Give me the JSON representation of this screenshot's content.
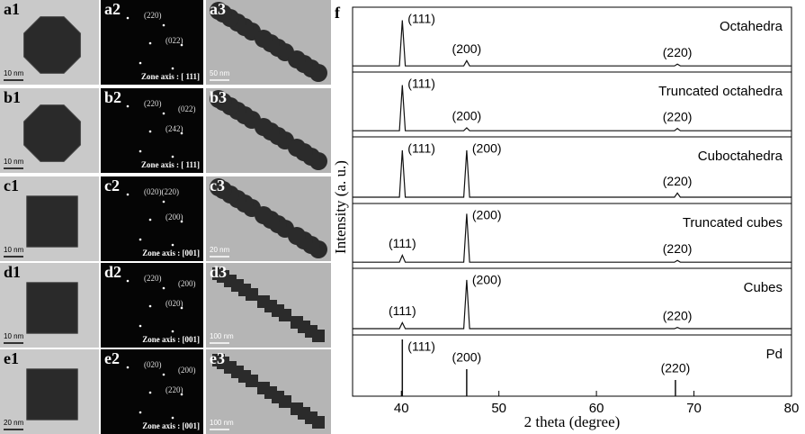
{
  "panels": [
    {
      "label": "a1",
      "scale_bar": "10 nm"
    },
    {
      "label": "a2",
      "spots": [
        "(220)",
        "(022)"
      ],
      "zone": "Zone axis : [ 111]"
    },
    {
      "label": "a3",
      "scale_bar": "50 nm"
    },
    {
      "label": "b1",
      "scale_bar": "10 nm"
    },
    {
      "label": "b2",
      "spots": [
        "(220)",
        "(242)",
        "(022)"
      ],
      "zone": "Zone axis : [ 111]"
    },
    {
      "label": "b3"
    },
    {
      "label": "c1",
      "scale_bar": "10 nm"
    },
    {
      "label": "c2",
      "spots": [
        "(020)(220)",
        "(200)"
      ],
      "zone": "Zone axis : [001]"
    },
    {
      "label": "c3",
      "scale_bar": "20 nm"
    },
    {
      "label": "d1",
      "scale_bar": "10 nm"
    },
    {
      "label": "d2",
      "spots": [
        "(220)",
        "(020)",
        "(200)"
      ],
      "zone": "Zone axis : [001]"
    },
    {
      "label": "d3",
      "scale_bar": "100 nm"
    },
    {
      "label": "e1",
      "scale_bar": "20 nm"
    },
    {
      "label": "e2",
      "spots": [
        "(020)",
        "(220)",
        "(200)"
      ],
      "zone": "Zone axis : [001]"
    },
    {
      "label": "e3",
      "scale_bar": "100 nm"
    }
  ],
  "chart_data": {
    "type": "line",
    "panel_label": "f",
    "x_label": "2 theta (degree)",
    "y_label": "Intensity (a. u.)",
    "xlim": [
      35,
      80
    ],
    "xticks": [
      40,
      50,
      60,
      70,
      80
    ],
    "ylim": [
      0,
      100
    ],
    "series": [
      {
        "name": "Octahedra",
        "color": "#111111",
        "x": [
          35,
          39.8,
          40.1,
          40.4,
          46.4,
          46.7,
          47.0,
          68.0,
          68.3,
          68.6,
          80
        ],
        "values": [
          6,
          6,
          85,
          6,
          6,
          15,
          6,
          6,
          9,
          6,
          6
        ],
        "peaks": [
          {
            "label": "(111)",
            "x": 40.1
          },
          {
            "label": "(200)",
            "x": 46.7
          },
          {
            "label": "(220)",
            "x": 68.3
          }
        ]
      },
      {
        "name": "Truncated octahedra",
        "color": "#111111",
        "x": [
          35,
          39.8,
          40.1,
          40.4,
          46.4,
          46.7,
          47.0,
          68.0,
          68.3,
          68.6,
          80
        ],
        "values": [
          6,
          6,
          85,
          6,
          6,
          11,
          6,
          6,
          10,
          6,
          6
        ],
        "peaks": [
          {
            "label": "(111)",
            "x": 40.1
          },
          {
            "label": "(200)",
            "x": 46.7
          },
          {
            "label": "(220)",
            "x": 68.3
          }
        ]
      },
      {
        "name": "Cuboctahedra",
        "color": "#111111",
        "x": [
          35,
          39.8,
          40.1,
          40.4,
          46.4,
          46.7,
          47.0,
          68.0,
          68.3,
          68.6,
          80
        ],
        "values": [
          6,
          6,
          85,
          6,
          6,
          85,
          6,
          6,
          13,
          6,
          6
        ],
        "peaks": [
          {
            "label": "(111)",
            "x": 40.1
          },
          {
            "label": "(200)",
            "x": 46.7
          },
          {
            "label": "(220)",
            "x": 68.3
          }
        ]
      },
      {
        "name": "Truncated cubes",
        "color": "#111111",
        "x": [
          35,
          39.8,
          40.1,
          40.4,
          46.4,
          46.7,
          47.0,
          68.0,
          68.3,
          68.6,
          80
        ],
        "values": [
          6,
          6,
          18,
          6,
          6,
          90,
          6,
          6,
          9,
          6,
          6
        ],
        "peaks": [
          {
            "label": "(111)",
            "x": 40.1
          },
          {
            "label": "(200)",
            "x": 46.7
          },
          {
            "label": "(220)",
            "x": 68.3
          }
        ]
      },
      {
        "name": "Cubes",
        "color": "#111111",
        "x": [
          35,
          39.8,
          40.1,
          40.4,
          46.4,
          46.7,
          47.0,
          68.0,
          68.3,
          68.6,
          80
        ],
        "values": [
          6,
          6,
          16,
          6,
          6,
          88,
          6,
          6,
          8,
          6,
          6
        ],
        "peaks": [
          {
            "label": "(111)",
            "x": 40.1
          },
          {
            "label": "(200)",
            "x": 46.7
          },
          {
            "label": "(220)",
            "x": 68.3
          }
        ]
      },
      {
        "name": "Pd",
        "color": "#111111",
        "style": "stick",
        "x": [
          40.1,
          46.7,
          68.1
        ],
        "values": [
          100,
          45,
          25
        ],
        "peaks": [
          {
            "label": "(111)",
            "x": 40.1
          },
          {
            "label": "(200)",
            "x": 46.7
          },
          {
            "label": "(220)",
            "x": 68.1
          }
        ]
      }
    ]
  }
}
